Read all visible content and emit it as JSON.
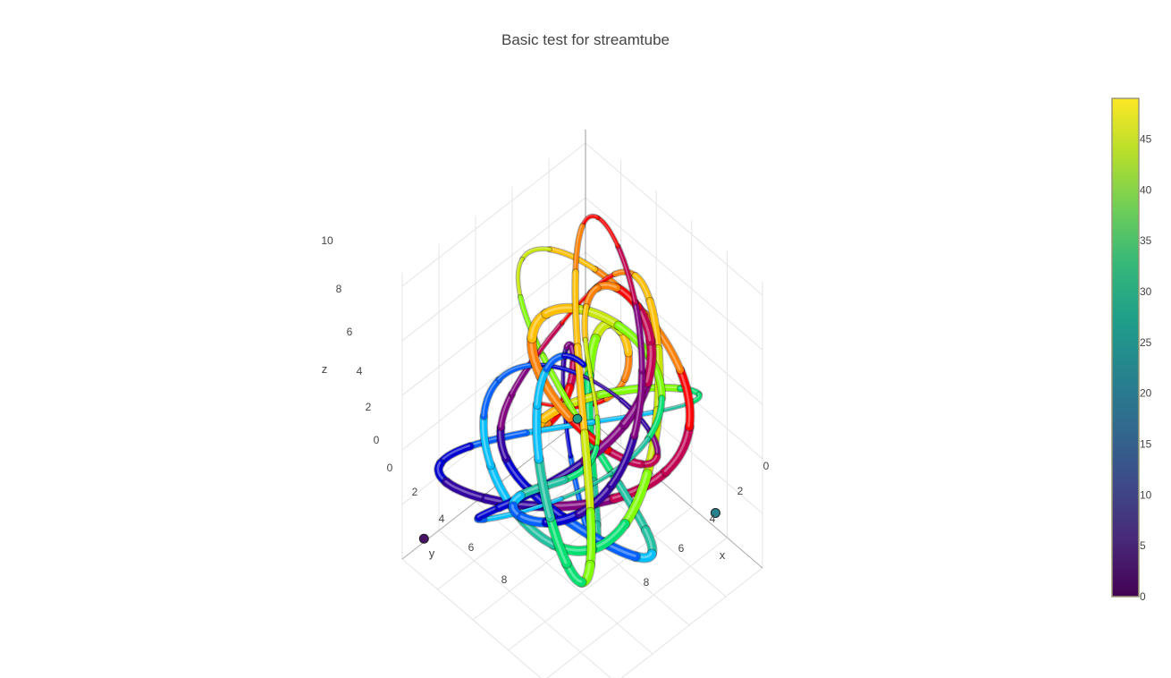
{
  "chart_data": {
    "type": "streamtube",
    "title": "Basic test for streamtube",
    "axes": {
      "x": {
        "label": "x",
        "ticks": [
          "0",
          "2",
          "4",
          "6",
          "8"
        ],
        "range": [
          0,
          10
        ]
      },
      "y": {
        "label": "y",
        "ticks": [
          "0",
          "2",
          "4",
          "6",
          "8"
        ],
        "range": [
          0,
          10
        ]
      },
      "z": {
        "label": "z",
        "ticks": [
          "0",
          "2",
          "4",
          "6",
          "8",
          "10"
        ],
        "range": [
          0,
          10.5
        ]
      }
    },
    "grid": true,
    "colorbar": {
      "ticks": [
        "0",
        "5",
        "10",
        "15",
        "20",
        "25",
        "30",
        "35",
        "40",
        "45"
      ],
      "range": [
        0,
        49
      ],
      "colorscale": [
        "#440154",
        "#482878",
        "#3e4989",
        "#31688e",
        "#26828e",
        "#1f9e89",
        "#35b779",
        "#6ece58",
        "#b5de2b",
        "#fde725"
      ],
      "placement": "right"
    }
  }
}
